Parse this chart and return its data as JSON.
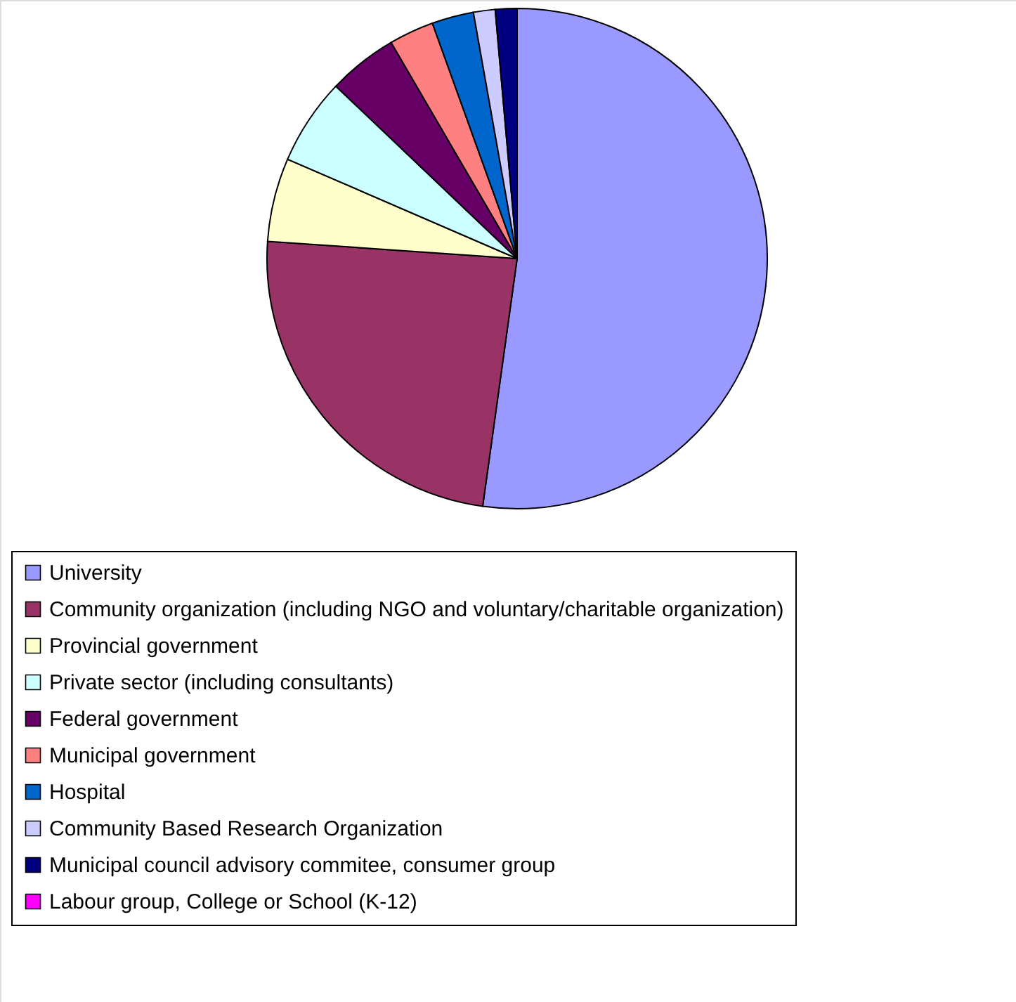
{
  "chart_data": {
    "type": "pie",
    "categories": [
      "University",
      "Community organization (including NGO and voluntary/charitable organization)",
      "Provincial government",
      "Private sector (including consultants)",
      "Federal government",
      "Municipal government",
      "Hospital",
      "Community Based Research Organization",
      "Municipal council advisory commitee, consumer group",
      "Labour group, College or School (K-12)"
    ],
    "values": [
      52.2,
      23.9,
      5.4,
      5.6,
      4.5,
      2.9,
      2.7,
      1.4,
      1.4,
      0
    ],
    "colors": [
      "#9999ff",
      "#993366",
      "#ffffcc",
      "#ccffff",
      "#660066",
      "#ff8080",
      "#0066cc",
      "#ccccff",
      "#000080",
      "#ff00ff"
    ],
    "legend": "bottom"
  }
}
